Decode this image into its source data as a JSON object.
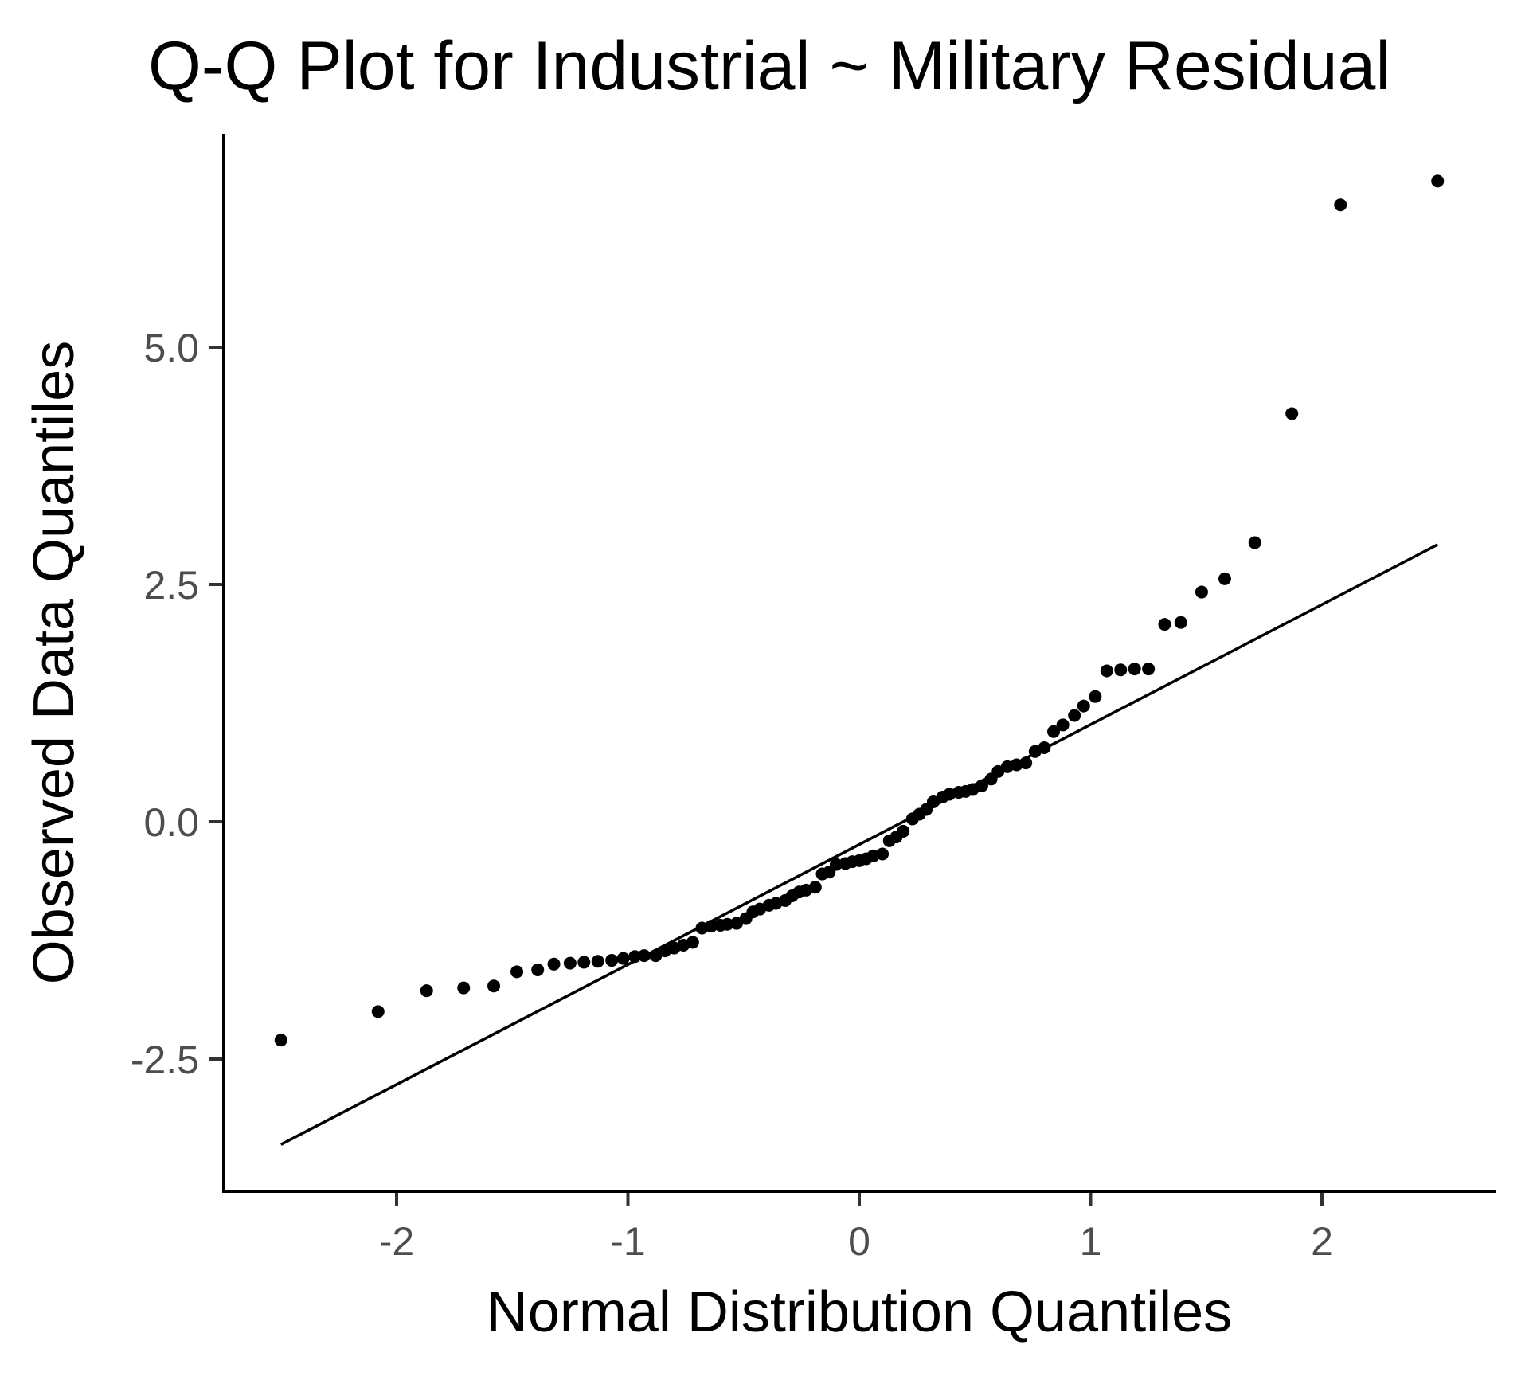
{
  "chart_data": {
    "type": "scatter",
    "title": "Q-Q Plot for Industrial ~ Military Residual",
    "xlabel": "Normal Distribution Quantiles",
    "ylabel": "Observed Data Quantiles",
    "xlim": [
      -2.75,
      2.75
    ],
    "ylim": [
      -3.9,
      7.2
    ],
    "x_ticks": [
      -2,
      -1,
      0,
      1,
      2
    ],
    "x_tick_labels": [
      "-2",
      "-1",
      "0",
      "1",
      "2"
    ],
    "y_ticks": [
      -2.5,
      0.0,
      2.5,
      5.0
    ],
    "y_tick_labels": [
      "-2.5",
      "0.0",
      "2.5",
      "5.0"
    ],
    "grid": false,
    "reference_line": {
      "x": [
        -2.5,
        2.5
      ],
      "y": [
        -3.4,
        2.92
      ]
    },
    "points": [
      [
        -2.5,
        -2.3
      ],
      [
        -2.08,
        -2.0
      ],
      [
        -1.87,
        -1.78
      ],
      [
        -1.71,
        -1.75
      ],
      [
        -1.58,
        -1.73
      ],
      [
        -1.48,
        -1.58
      ],
      [
        -1.39,
        -1.56
      ],
      [
        -1.32,
        -1.5
      ],
      [
        -1.25,
        -1.49
      ],
      [
        -1.19,
        -1.48
      ],
      [
        -1.13,
        -1.47
      ],
      [
        -1.07,
        -1.46
      ],
      [
        -1.02,
        -1.44
      ],
      [
        -0.97,
        -1.42
      ],
      [
        -0.93,
        -1.41
      ],
      [
        -0.88,
        -1.41
      ],
      [
        -0.84,
        -1.36
      ],
      [
        -0.8,
        -1.33
      ],
      [
        -0.76,
        -1.3
      ],
      [
        -0.72,
        -1.27
      ],
      [
        -0.68,
        -1.12
      ],
      [
        -0.64,
        -1.1
      ],
      [
        -0.6,
        -1.09
      ],
      [
        -0.57,
        -1.08
      ],
      [
        -0.53,
        -1.07
      ],
      [
        -0.49,
        -1.02
      ],
      [
        -0.46,
        -0.95
      ],
      [
        -0.43,
        -0.92
      ],
      [
        -0.39,
        -0.88
      ],
      [
        -0.36,
        -0.86
      ],
      [
        -0.32,
        -0.83
      ],
      [
        -0.29,
        -0.78
      ],
      [
        -0.26,
        -0.74
      ],
      [
        -0.23,
        -0.72
      ],
      [
        -0.19,
        -0.69
      ],
      [
        -0.16,
        -0.55
      ],
      [
        -0.13,
        -0.53
      ],
      [
        -0.1,
        -0.45
      ],
      [
        -0.06,
        -0.44
      ],
      [
        -0.03,
        -0.42
      ],
      [
        0.0,
        -0.41
      ],
      [
        0.03,
        -0.39
      ],
      [
        0.06,
        -0.36
      ],
      [
        0.1,
        -0.34
      ],
      [
        0.13,
        -0.2
      ],
      [
        0.16,
        -0.16
      ],
      [
        0.19,
        -0.1
      ],
      [
        0.23,
        0.03
      ],
      [
        0.26,
        0.08
      ],
      [
        0.29,
        0.13
      ],
      [
        0.32,
        0.21
      ],
      [
        0.36,
        0.26
      ],
      [
        0.39,
        0.29
      ],
      [
        0.43,
        0.31
      ],
      [
        0.46,
        0.32
      ],
      [
        0.49,
        0.34
      ],
      [
        0.53,
        0.38
      ],
      [
        0.57,
        0.45
      ],
      [
        0.6,
        0.53
      ],
      [
        0.64,
        0.58
      ],
      [
        0.68,
        0.6
      ],
      [
        0.72,
        0.62
      ],
      [
        0.76,
        0.74
      ],
      [
        0.8,
        0.78
      ],
      [
        0.84,
        0.95
      ],
      [
        0.88,
        1.02
      ],
      [
        0.93,
        1.12
      ],
      [
        0.97,
        1.22
      ],
      [
        1.02,
        1.32
      ],
      [
        1.07,
        1.59
      ],
      [
        1.13,
        1.6
      ],
      [
        1.19,
        1.61
      ],
      [
        1.25,
        1.61
      ],
      [
        1.32,
        2.08
      ],
      [
        1.39,
        2.1
      ],
      [
        1.48,
        2.42
      ],
      [
        1.58,
        2.56
      ],
      [
        1.71,
        2.94
      ],
      [
        1.87,
        4.3
      ],
      [
        2.08,
        6.5
      ],
      [
        2.5,
        6.75
      ]
    ]
  }
}
